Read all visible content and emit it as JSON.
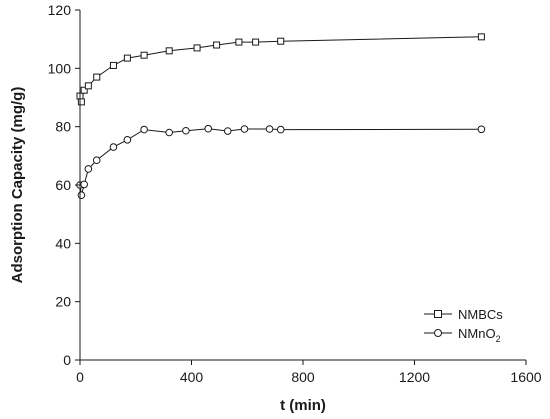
{
  "chart_data": {
    "type": "line",
    "title": "",
    "xlabel": "t (min)",
    "ylabel": "Adsorption Capacity (mg/g)",
    "xlim": [
      0,
      1600
    ],
    "ylim": [
      0,
      120
    ],
    "xticks": [
      0,
      400,
      800,
      1200,
      1600
    ],
    "yticks": [
      0,
      20,
      40,
      60,
      80,
      100,
      120
    ],
    "grid": false,
    "legend_position": "bottom-right",
    "series": [
      {
        "name": "NMBCs",
        "marker": "square",
        "x": [
          0,
          5,
          15,
          30,
          60,
          120,
          170,
          230,
          320,
          420,
          490,
          570,
          630,
          720,
          1440
        ],
        "y": [
          90.5,
          88.5,
          92.5,
          94,
          97,
          101,
          103.5,
          104.5,
          106,
          107,
          108,
          109,
          109,
          109.3,
          110.8
        ]
      },
      {
        "name": "NMnO",
        "name_subscript": "2",
        "marker": "circle",
        "x": [
          0,
          5,
          15,
          30,
          60,
          120,
          170,
          230,
          320,
          380,
          460,
          530,
          590,
          680,
          720,
          1440
        ],
        "y": [
          60,
          56.5,
          60.2,
          65.5,
          68.5,
          73,
          75.5,
          79,
          78,
          78.6,
          79.3,
          78.5,
          79.2,
          79.2,
          79,
          79.1
        ]
      }
    ]
  }
}
